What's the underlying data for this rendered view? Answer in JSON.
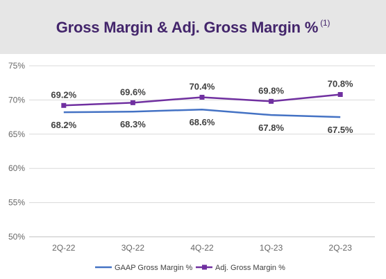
{
  "header": {
    "title": "Gross Margin & Adj. Gross Margin %",
    "footnote": "(1)"
  },
  "chart_data": {
    "type": "line",
    "title": "Gross Margin & Adj. Gross Margin %",
    "categories": [
      "2Q-22",
      "3Q-22",
      "4Q-22",
      "1Q-23",
      "2Q-23"
    ],
    "ylim": [
      50,
      75
    ],
    "yticks": [
      50,
      55,
      60,
      65,
      70,
      75
    ],
    "ytick_labels": [
      "50%",
      "55%",
      "60%",
      "65%",
      "70%",
      "75%"
    ],
    "grid": true,
    "legend_position": "bottom",
    "series": [
      {
        "name": "GAAP Gross Margin %",
        "color": "#4472c4",
        "marker": "none",
        "values": [
          68.2,
          68.3,
          68.6,
          67.8,
          67.5
        ],
        "labels": [
          "68.2%",
          "68.3%",
          "68.6%",
          "67.8%",
          "67.5%"
        ]
      },
      {
        "name": "Adj. Gross Margin %",
        "color": "#7030a0",
        "marker": "square",
        "values": [
          69.2,
          69.6,
          70.4,
          69.8,
          70.8
        ],
        "labels": [
          "69.2%",
          "69.6%",
          "70.4%",
          "69.8%",
          "70.8%"
        ]
      }
    ]
  }
}
